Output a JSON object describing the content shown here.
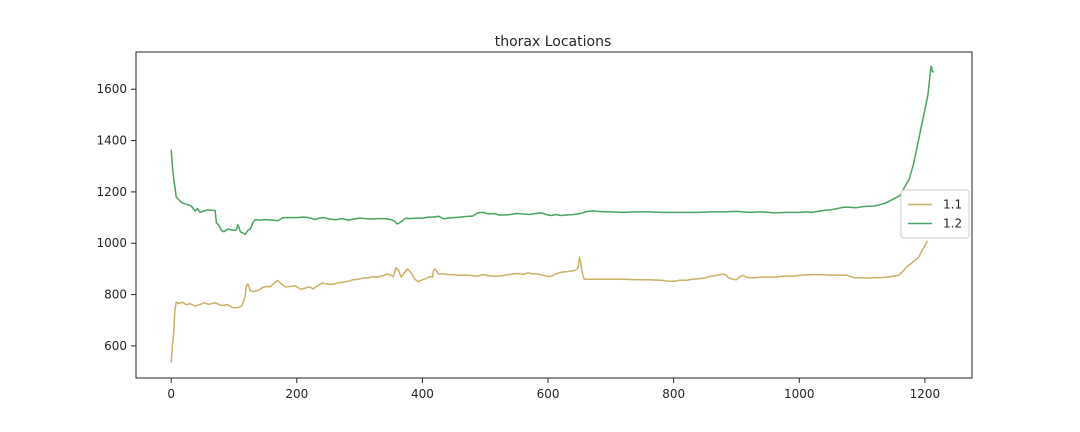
{
  "chart_data": {
    "type": "line",
    "title": "thorax Locations",
    "xlabel": "",
    "ylabel": "",
    "xlim": [
      -56,
      1275
    ],
    "ylim": [
      475,
      1745
    ],
    "xticks": [
      0,
      200,
      400,
      600,
      800,
      1000,
      1200
    ],
    "yticks": [
      600,
      800,
      1000,
      1200,
      1400,
      1600
    ],
    "grid": false,
    "legend_position": "center-right",
    "series": [
      {
        "name": "1.1",
        "color": "#c9b166",
        "points": [
          [
            0,
            535
          ],
          [
            2,
            600
          ],
          [
            4,
            650
          ],
          [
            6,
            740
          ],
          [
            8,
            770
          ],
          [
            12,
            765
          ],
          [
            18,
            770
          ],
          [
            24,
            760
          ],
          [
            30,
            765
          ],
          [
            38,
            755
          ],
          [
            45,
            760
          ],
          [
            52,
            768
          ],
          [
            60,
            762
          ],
          [
            70,
            768
          ],
          [
            80,
            758
          ],
          [
            90,
            760
          ],
          [
            96,
            752
          ],
          [
            100,
            748
          ],
          [
            108,
            750
          ],
          [
            112,
            755
          ],
          [
            116,
            780
          ],
          [
            118,
            800
          ],
          [
            120,
            835
          ],
          [
            122,
            842
          ],
          [
            126,
            815
          ],
          [
            132,
            812
          ],
          [
            140,
            818
          ],
          [
            146,
            828
          ],
          [
            152,
            832
          ],
          [
            158,
            830
          ],
          [
            164,
            845
          ],
          [
            170,
            855
          ],
          [
            176,
            840
          ],
          [
            182,
            830
          ],
          [
            190,
            832
          ],
          [
            198,
            834
          ],
          [
            206,
            820
          ],
          [
            212,
            824
          ],
          [
            220,
            830
          ],
          [
            226,
            822
          ],
          [
            232,
            832
          ],
          [
            240,
            845
          ],
          [
            246,
            842
          ],
          [
            252,
            840
          ],
          [
            258,
            840
          ],
          [
            266,
            846
          ],
          [
            274,
            848
          ],
          [
            282,
            852
          ],
          [
            290,
            858
          ],
          [
            298,
            860
          ],
          [
            306,
            865
          ],
          [
            314,
            865
          ],
          [
            322,
            870
          ],
          [
            330,
            868
          ],
          [
            338,
            875
          ],
          [
            344,
            880
          ],
          [
            350,
            875
          ],
          [
            354,
            870
          ],
          [
            358,
            905
          ],
          [
            362,
            895
          ],
          [
            366,
            868
          ],
          [
            370,
            880
          ],
          [
            376,
            900
          ],
          [
            382,
            885
          ],
          [
            388,
            860
          ],
          [
            394,
            850
          ],
          [
            400,
            858
          ],
          [
            406,
            862
          ],
          [
            412,
            870
          ],
          [
            416,
            868
          ],
          [
            418,
            895
          ],
          [
            420,
            900
          ],
          [
            426,
            880
          ],
          [
            434,
            880
          ],
          [
            442,
            878
          ],
          [
            450,
            878
          ],
          [
            458,
            875
          ],
          [
            466,
            876
          ],
          [
            474,
            876
          ],
          [
            480,
            874
          ],
          [
            488,
            872
          ],
          [
            496,
            878
          ],
          [
            504,
            874
          ],
          [
            512,
            872
          ],
          [
            520,
            872
          ],
          [
            528,
            874
          ],
          [
            536,
            878
          ],
          [
            544,
            880
          ],
          [
            552,
            882
          ],
          [
            560,
            878
          ],
          [
            568,
            885
          ],
          [
            576,
            880
          ],
          [
            584,
            880
          ],
          [
            592,
            875
          ],
          [
            600,
            870
          ],
          [
            606,
            872
          ],
          [
            612,
            880
          ],
          [
            618,
            885
          ],
          [
            624,
            888
          ],
          [
            632,
            890
          ],
          [
            638,
            892
          ],
          [
            644,
            895
          ],
          [
            648,
            905
          ],
          [
            650,
            945
          ],
          [
            652,
            925
          ],
          [
            654,
            890
          ],
          [
            656,
            870
          ],
          [
            658,
            860
          ],
          [
            666,
            860
          ],
          [
            680,
            860
          ],
          [
            700,
            860
          ],
          [
            720,
            860
          ],
          [
            740,
            858
          ],
          [
            760,
            858
          ],
          [
            780,
            856
          ],
          [
            790,
            852
          ],
          [
            800,
            852
          ],
          [
            810,
            856
          ],
          [
            820,
            856
          ],
          [
            830,
            860
          ],
          [
            840,
            862
          ],
          [
            850,
            865
          ],
          [
            860,
            872
          ],
          [
            870,
            876
          ],
          [
            880,
            880
          ],
          [
            884,
            875
          ],
          [
            888,
            865
          ],
          [
            894,
            860
          ],
          [
            900,
            858
          ],
          [
            906,
            870
          ],
          [
            910,
            875
          ],
          [
            916,
            868
          ],
          [
            924,
            865
          ],
          [
            940,
            868
          ],
          [
            960,
            868
          ],
          [
            975,
            872
          ],
          [
            990,
            872
          ],
          [
            1005,
            876
          ],
          [
            1020,
            878
          ],
          [
            1035,
            878
          ],
          [
            1050,
            876
          ],
          [
            1065,
            876
          ],
          [
            1075,
            876
          ],
          [
            1082,
            870
          ],
          [
            1090,
            864
          ],
          [
            1100,
            866
          ],
          [
            1110,
            864
          ],
          [
            1120,
            866
          ],
          [
            1130,
            866
          ],
          [
            1140,
            868
          ],
          [
            1150,
            872
          ],
          [
            1158,
            875
          ],
          [
            1165,
            890
          ],
          [
            1172,
            910
          ],
          [
            1180,
            925
          ],
          [
            1190,
            945
          ],
          [
            1196,
            975
          ],
          [
            1200,
            990
          ],
          [
            1204,
            1010
          ]
        ]
      },
      {
        "name": "1.2",
        "color": "#4aa363",
        "points": [
          [
            0,
            1365
          ],
          [
            2,
            1300
          ],
          [
            4,
            1250
          ],
          [
            6,
            1220
          ],
          [
            8,
            1180
          ],
          [
            12,
            1170
          ],
          [
            16,
            1160
          ],
          [
            20,
            1155
          ],
          [
            26,
            1150
          ],
          [
            32,
            1145
          ],
          [
            38,
            1125
          ],
          [
            42,
            1135
          ],
          [
            46,
            1120
          ],
          [
            52,
            1125
          ],
          [
            58,
            1130
          ],
          [
            64,
            1128
          ],
          [
            70,
            1128
          ],
          [
            72,
            1080
          ],
          [
            76,
            1070
          ],
          [
            80,
            1050
          ],
          [
            84,
            1045
          ],
          [
            90,
            1055
          ],
          [
            96,
            1052
          ],
          [
            100,
            1050
          ],
          [
            104,
            1052
          ],
          [
            106,
            1072
          ],
          [
            108,
            1062
          ],
          [
            110,
            1045
          ],
          [
            114,
            1040
          ],
          [
            118,
            1035
          ],
          [
            122,
            1050
          ],
          [
            126,
            1055
          ],
          [
            130,
            1080
          ],
          [
            134,
            1092
          ],
          [
            140,
            1090
          ],
          [
            150,
            1092
          ],
          [
            160,
            1090
          ],
          [
            170,
            1088
          ],
          [
            178,
            1100
          ],
          [
            190,
            1100
          ],
          [
            200,
            1100
          ],
          [
            210,
            1102
          ],
          [
            220,
            1100
          ],
          [
            228,
            1092
          ],
          [
            236,
            1098
          ],
          [
            244,
            1100
          ],
          [
            252,
            1094
          ],
          [
            262,
            1092
          ],
          [
            272,
            1096
          ],
          [
            282,
            1090
          ],
          [
            290,
            1094
          ],
          [
            300,
            1098
          ],
          [
            310,
            1096
          ],
          [
            320,
            1094
          ],
          [
            330,
            1096
          ],
          [
            340,
            1096
          ],
          [
            350,
            1092
          ],
          [
            356,
            1085
          ],
          [
            360,
            1075
          ],
          [
            364,
            1080
          ],
          [
            368,
            1088
          ],
          [
            374,
            1098
          ],
          [
            380,
            1096
          ],
          [
            390,
            1098
          ],
          [
            400,
            1098
          ],
          [
            410,
            1102
          ],
          [
            418,
            1102
          ],
          [
            426,
            1105
          ],
          [
            434,
            1095
          ],
          [
            440,
            1098
          ],
          [
            450,
            1100
          ],
          [
            460,
            1102
          ],
          [
            470,
            1104
          ],
          [
            480,
            1106
          ],
          [
            488,
            1118
          ],
          [
            496,
            1120
          ],
          [
            506,
            1114
          ],
          [
            514,
            1116
          ],
          [
            522,
            1110
          ],
          [
            530,
            1110
          ],
          [
            540,
            1112
          ],
          [
            550,
            1116
          ],
          [
            560,
            1114
          ],
          [
            570,
            1112
          ],
          [
            580,
            1116
          ],
          [
            590,
            1118
          ],
          [
            600,
            1110
          ],
          [
            606,
            1108
          ],
          [
            612,
            1112
          ],
          [
            620,
            1108
          ],
          [
            630,
            1110
          ],
          [
            640,
            1112
          ],
          [
            650,
            1115
          ],
          [
            660,
            1122
          ],
          [
            670,
            1126
          ],
          [
            680,
            1124
          ],
          [
            690,
            1122
          ],
          [
            700,
            1122
          ],
          [
            720,
            1120
          ],
          [
            740,
            1122
          ],
          [
            760,
            1122
          ],
          [
            780,
            1120
          ],
          [
            800,
            1120
          ],
          [
            820,
            1120
          ],
          [
            840,
            1120
          ],
          [
            860,
            1122
          ],
          [
            880,
            1122
          ],
          [
            900,
            1124
          ],
          [
            920,
            1120
          ],
          [
            940,
            1122
          ],
          [
            960,
            1118
          ],
          [
            980,
            1120
          ],
          [
            1000,
            1120
          ],
          [
            1012,
            1122
          ],
          [
            1020,
            1120
          ],
          [
            1030,
            1124
          ],
          [
            1040,
            1128
          ],
          [
            1050,
            1130
          ],
          [
            1060,
            1135
          ],
          [
            1070,
            1140
          ],
          [
            1080,
            1140
          ],
          [
            1090,
            1138
          ],
          [
            1100,
            1142
          ],
          [
            1110,
            1144
          ],
          [
            1120,
            1145
          ],
          [
            1128,
            1150
          ],
          [
            1136,
            1155
          ],
          [
            1144,
            1165
          ],
          [
            1152,
            1175
          ],
          [
            1160,
            1185
          ],
          [
            1168,
            1220
          ],
          [
            1175,
            1250
          ],
          [
            1182,
            1310
          ],
          [
            1188,
            1380
          ],
          [
            1194,
            1450
          ],
          [
            1200,
            1520
          ],
          [
            1205,
            1580
          ],
          [
            1208,
            1650
          ],
          [
            1210,
            1690
          ],
          [
            1212,
            1670
          ],
          [
            1214,
            1665
          ]
        ]
      }
    ]
  }
}
